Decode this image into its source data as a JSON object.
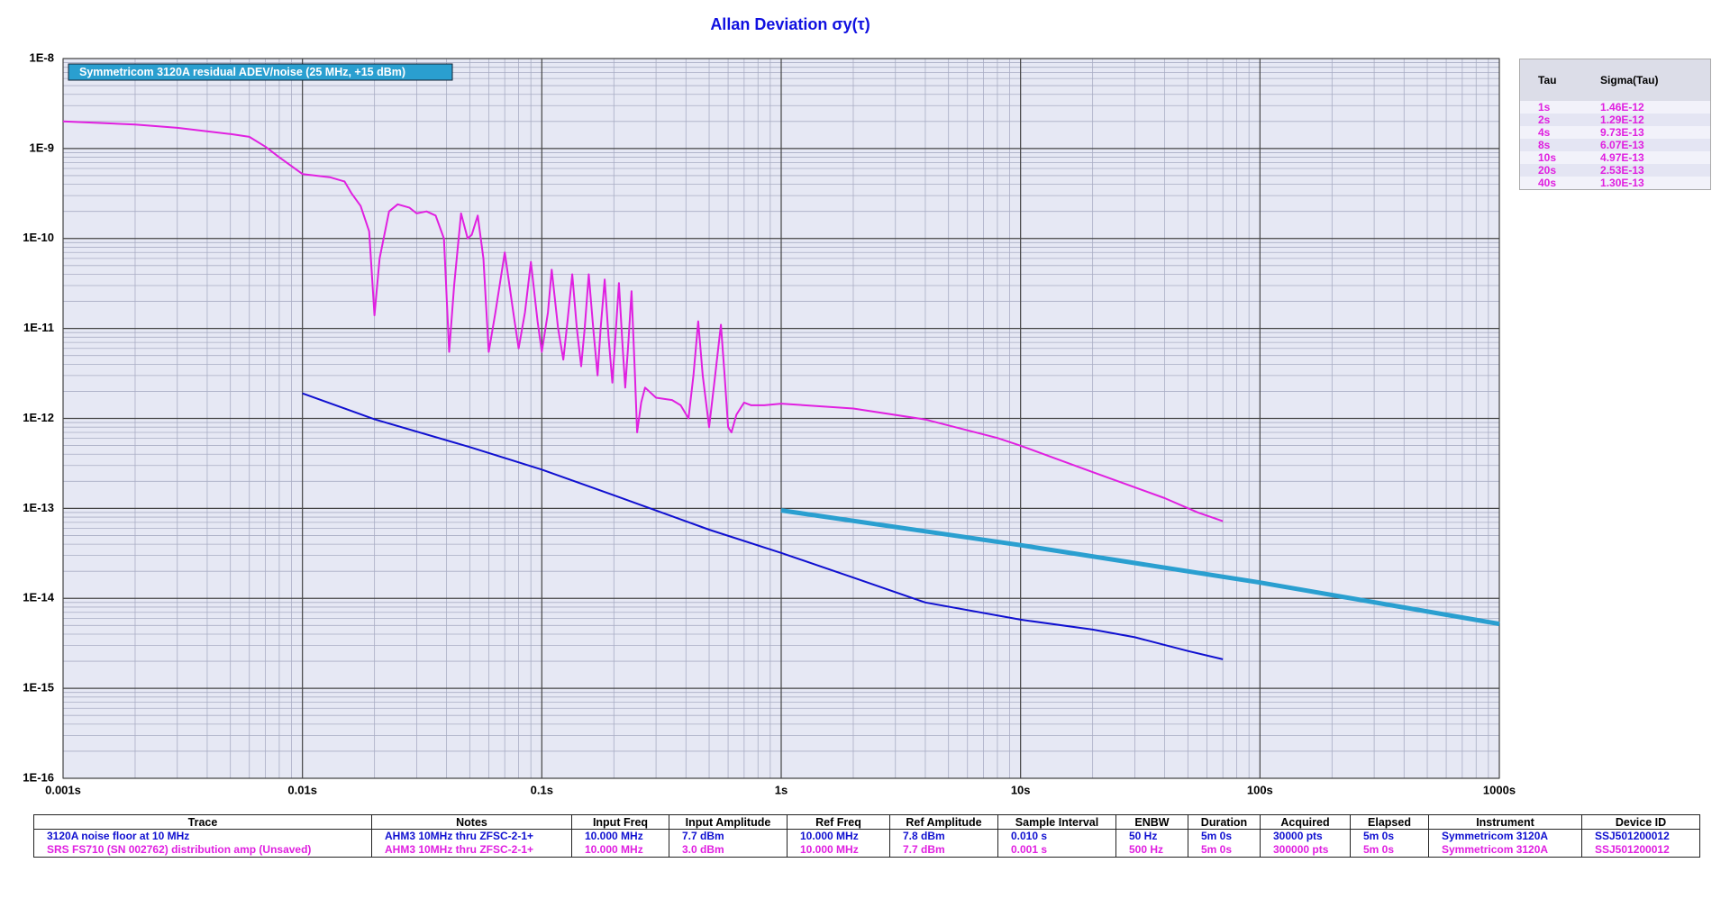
{
  "chart_data": {
    "type": "line",
    "title": "Allan Deviation σy(τ)",
    "xlim": [
      0.001,
      1000
    ],
    "ylim": [
      1e-16,
      1e-08
    ],
    "log_x": true,
    "log_y": true,
    "grid": true,
    "minor_grid": true,
    "legend": "upper left",
    "xticks": [
      {
        "value": 0.001,
        "label": "0.001s"
      },
      {
        "value": 0.01,
        "label": "0.01s"
      },
      {
        "value": 0.1,
        "label": "0.1s"
      },
      {
        "value": 1,
        "label": "1s"
      },
      {
        "value": 10,
        "label": "10s"
      },
      {
        "value": 100,
        "label": "100s"
      },
      {
        "value": 1000,
        "label": "1000s"
      }
    ],
    "yticks": [
      {
        "value": 1e-16,
        "label": "1E-16"
      },
      {
        "value": 1e-15,
        "label": "1E-15"
      },
      {
        "value": 1e-14,
        "label": "1E-14"
      },
      {
        "value": 1e-13,
        "label": "1E-13"
      },
      {
        "value": 1e-12,
        "label": "1E-12"
      },
      {
        "value": 1e-11,
        "label": "1E-11"
      },
      {
        "value": 1e-10,
        "label": "1E-10"
      },
      {
        "value": 1e-09,
        "label": "1E-9"
      },
      {
        "value": 1e-08,
        "label": "1E-8"
      }
    ],
    "series": [
      {
        "color": "#e020e0",
        "x": [
          0.001,
          0.002,
          0.003,
          0.005,
          0.006,
          0.007,
          0.008,
          0.01,
          0.013,
          0.015,
          0.016,
          0.0175,
          0.019,
          0.02,
          0.021,
          0.022,
          0.023,
          0.025,
          0.028,
          0.03,
          0.033,
          0.036,
          0.039,
          0.041,
          0.043,
          0.046,
          0.049,
          0.051,
          0.054,
          0.057,
          0.06,
          0.064,
          0.07,
          0.076,
          0.08,
          0.085,
          0.09,
          0.096,
          0.1,
          0.106,
          0.11,
          0.117,
          0.123,
          0.128,
          0.134,
          0.14,
          0.146,
          0.151,
          0.157,
          0.164,
          0.171,
          0.176,
          0.183,
          0.19,
          0.197,
          0.203,
          0.21,
          0.217,
          0.223,
          0.23,
          0.237,
          0.245,
          0.25,
          0.26,
          0.27,
          0.3,
          0.35,
          0.38,
          0.41,
          0.43,
          0.45,
          0.47,
          0.5,
          0.53,
          0.56,
          0.58,
          0.6,
          0.62,
          0.65,
          0.7,
          0.75,
          0.85,
          1,
          2,
          4,
          8,
          10,
          20,
          40,
          55,
          70
        ],
        "values": [
          2e-09,
          1.85e-09,
          1.7e-09,
          1.45e-09,
          1.35e-09,
          1.05e-09,
          8e-10,
          5.2e-10,
          4.8e-10,
          4.3e-10,
          3.2e-10,
          2.3e-10,
          1.2e-10,
          1.4e-11,
          6e-11,
          1.1e-10,
          2e-10,
          2.4e-10,
          2.2e-10,
          1.9e-10,
          2e-10,
          1.8e-10,
          1e-10,
          5.5e-12,
          3e-11,
          1.9e-10,
          1e-10,
          1.1e-10,
          1.8e-10,
          6e-11,
          5.5e-12,
          1.5e-11,
          7e-11,
          1.5e-11,
          6e-12,
          1.5e-11,
          5.5e-11,
          1.2e-11,
          5.5e-12,
          1.5e-11,
          4.5e-11,
          1e-11,
          4.5e-12,
          1.2e-11,
          4e-11,
          1e-11,
          3.8e-12,
          1e-11,
          4e-11,
          1e-11,
          3e-12,
          1e-11,
          3.5e-11,
          8e-12,
          2.5e-12,
          8e-12,
          3.2e-11,
          7e-12,
          2.2e-12,
          7e-12,
          2.6e-11,
          3e-12,
          7e-13,
          1.5e-12,
          2.2e-12,
          1.7e-12,
          1.6e-12,
          1.4e-12,
          1e-12,
          3e-12,
          1.2e-11,
          3e-12,
          8e-13,
          3e-12,
          1.1e-11,
          3e-12,
          8e-13,
          7e-13,
          1.1e-12,
          1.5e-12,
          1.4e-12,
          1.4e-12,
          1.46e-12,
          1.29e-12,
          9.73e-13,
          6.07e-13,
          4.97e-13,
          2.53e-13,
          1.3e-13,
          9e-14,
          7.2e-14
        ]
      },
      {
        "color": "#1010d0",
        "x": [
          0.01,
          0.02,
          0.05,
          0.1,
          0.2,
          0.5,
          1,
          2,
          4,
          10,
          20,
          30,
          50,
          70
        ],
        "values": [
          1.9e-12,
          9.8e-13,
          4.8e-13,
          2.7e-13,
          1.4e-13,
          5.8e-14,
          3.2e-14,
          1.7e-14,
          9e-15,
          5.8e-15,
          4.5e-15,
          3.7e-15,
          2.6e-15,
          2.1e-15
        ]
      },
      {
        "name": "Symmetricom 3120A residual ADEV/noise (25 MHz, +15 dBm)",
        "color": "#2a9fd0",
        "x": [
          1,
          10,
          100,
          1000
        ],
        "values": [
          9.5e-14,
          3.9e-14,
          1.5e-14,
          5.2e-15
        ]
      }
    ]
  },
  "tau_table": {
    "columns": [
      "Tau",
      "Sigma(Tau)"
    ],
    "rows": [
      [
        "1s",
        "1.46E-12"
      ],
      [
        "2s",
        "1.29E-12"
      ],
      [
        "4s",
        "9.73E-13"
      ],
      [
        "8s",
        "6.07E-13"
      ],
      [
        "10s",
        "4.97E-13"
      ],
      [
        "20s",
        "2.53E-13"
      ],
      [
        "40s",
        "1.30E-13"
      ]
    ]
  },
  "trace_table": {
    "columns": [
      "Trace",
      "Notes",
      "Input Freq",
      "Input Amplitude",
      "Ref Freq",
      "Ref Amplitude",
      "Sample Interval",
      "ENBW",
      "Duration",
      "Acquired",
      "Elapsed",
      "Instrument",
      "Device ID"
    ],
    "rows": [
      [
        "3120A noise floor at 10 MHz",
        "AHM3 10MHz thru ZFSC-2-1+",
        "10.000 MHz",
        "7.7 dBm",
        "10.000 MHz",
        "7.8 dBm",
        "0.010 s",
        "50 Hz",
        "5m 0s",
        "30000 pts",
        "5m 0s",
        "Symmetricom 3120A",
        "SSJ501200012"
      ],
      [
        "SRS FS710 (SN 002762) distribution amp (Unsaved)",
        "AHM3 10MHz thru ZFSC-2-1+",
        "10.000 MHz",
        "3.0 dBm",
        "10.000 MHz",
        "7.7 dBm",
        "0.001 s",
        "500 Hz",
        "5m 0s",
        "300000 pts",
        "5m 0s",
        "Symmetricom 3120A",
        "SSJ501200012"
      ]
    ]
  }
}
